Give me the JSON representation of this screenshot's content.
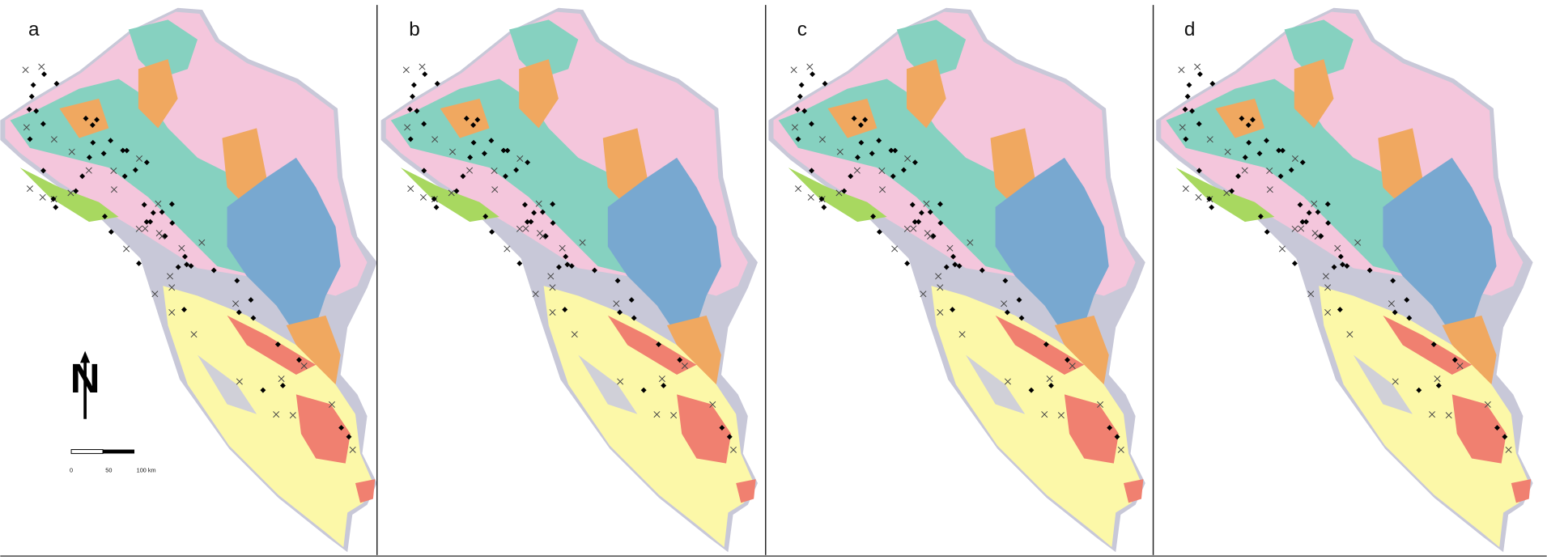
{
  "panels": [
    {
      "label": "a"
    },
    {
      "label": "b"
    },
    {
      "label": "c"
    },
    {
      "label": "d"
    }
  ],
  "north_arrow": {
    "label": "N"
  },
  "scale_bar": {
    "labels": [
      "0",
      "50",
      "100 km"
    ]
  }
}
